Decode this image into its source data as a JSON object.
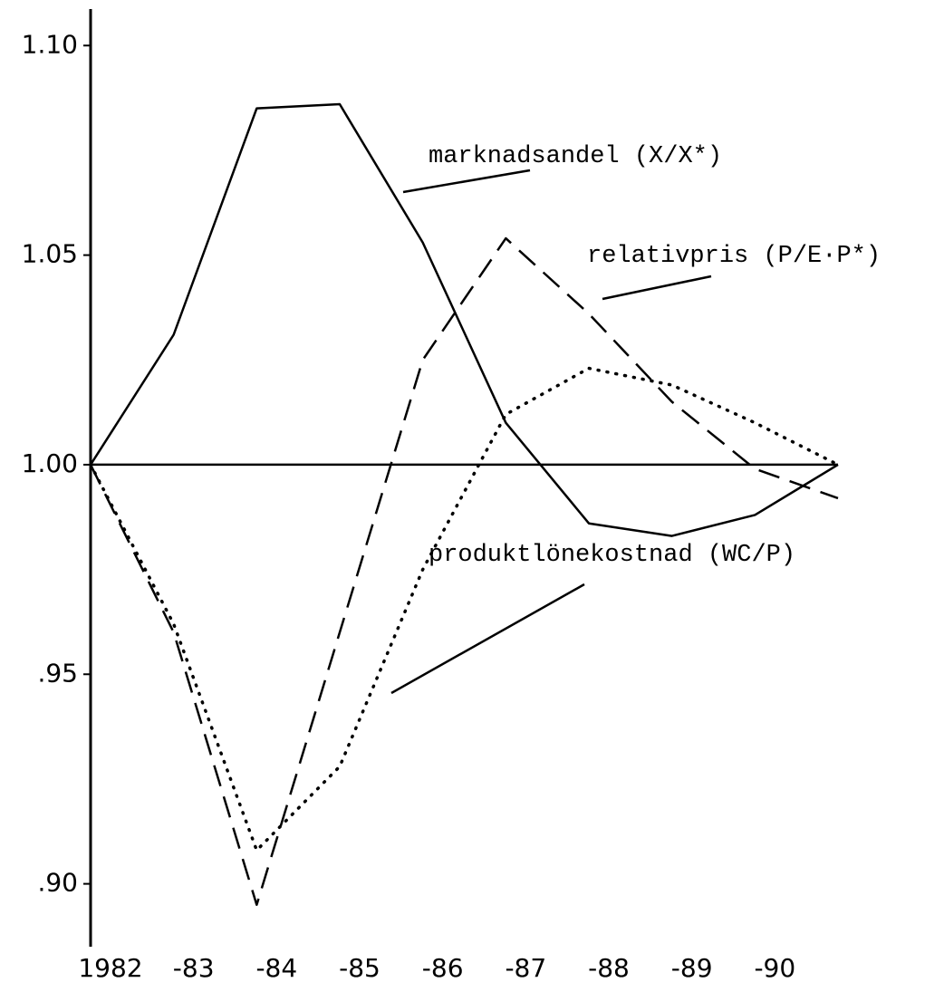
{
  "chart_data": {
    "type": "line",
    "categories": [
      "1982",
      "-83",
      "-84",
      "-85",
      "-86",
      "-87",
      "-88",
      "-89",
      "-90",
      null
    ],
    "series": [
      {
        "name": "marknadsandel (X/X*)",
        "color": "#000000",
        "style": "solid",
        "values": [
          1.0,
          1.031,
          1.085,
          1.086,
          1.053,
          1.01,
          0.986,
          0.983,
          0.988,
          1.0
        ]
      },
      {
        "name": "relativpris (P/E·P*)",
        "color": "#000000",
        "style": "dashed",
        "values": [
          1.0,
          0.96,
          0.895,
          0.96,
          1.025,
          1.054,
          1.036,
          1.015,
          0.999,
          0.992
        ]
      },
      {
        "name": "produktlönekostnad (WC/P)",
        "color": "#000000",
        "style": "dotted",
        "values": [
          1.0,
          0.962,
          0.908,
          0.928,
          0.975,
          1.012,
          1.023,
          1.019,
          1.01,
          1.0
        ]
      }
    ],
    "ylim": [
      0.885,
      1.11
    ],
    "yticks": [
      {
        "value": 1.1,
        "label": "1.10"
      },
      {
        "value": 1.05,
        "label": "1.05"
      },
      {
        "value": 1,
        "label": "1.00"
      },
      {
        "value": 0.95,
        "label": ".95"
      },
      {
        "value": 0.9,
        "label": ".90"
      }
    ],
    "reference_line": 1,
    "grid": false
  }
}
